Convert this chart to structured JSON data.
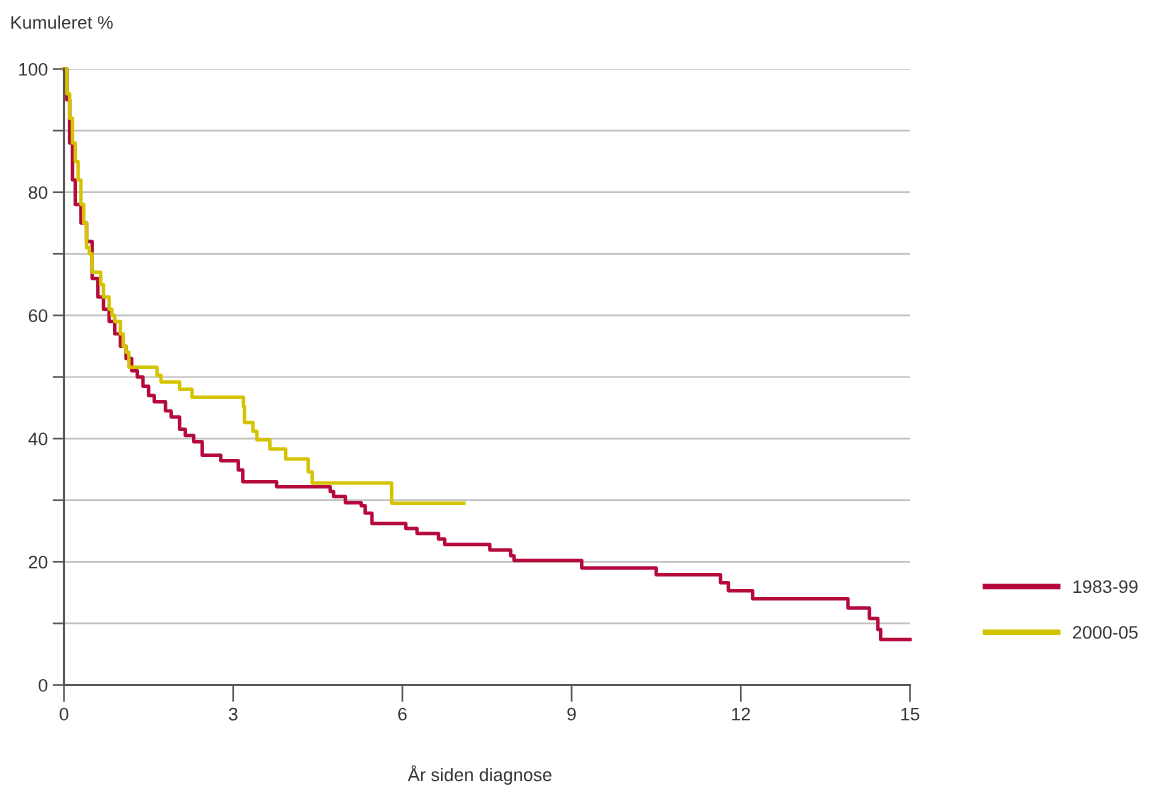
{
  "chart_data": {
    "type": "step",
    "ylabel": "Kumuleret %",
    "xlabel": "År siden diagnose",
    "xlim": [
      0,
      15
    ],
    "xticks": [
      0,
      3,
      6,
      9,
      12,
      15
    ],
    "ylim": [
      0,
      100
    ],
    "yticks": [
      0,
      {
        "value": 10,
        "label": null
      },
      20,
      {
        "value": 30,
        "label": null
      },
      40,
      {
        "value": 50,
        "label": null
      },
      60,
      {
        "value": 70,
        "label": null
      },
      80,
      {
        "value": 90,
        "label": null
      },
      100
    ],
    "grid": "y",
    "legend": "right",
    "line_style": "solid",
    "series": [
      {
        "name": "1983-99",
        "color": "#b5093c",
        "x": [
          0,
          0.05,
          0.1,
          0.15,
          0.2,
          0.3,
          0.4,
          0.5,
          0.6,
          0.7,
          0.8,
          0.9,
          1.0,
          1.1,
          1.2,
          1.3,
          1.4,
          1.5,
          1.6,
          1.8,
          1.9,
          2.05,
          2.15,
          2.3,
          2.45,
          2.78,
          3.09,
          3.17,
          3.77,
          4.72,
          4.78,
          4.99,
          5.27,
          5.34,
          5.46,
          6.06,
          6.26,
          6.64,
          6.75,
          7.55,
          7.92,
          7.98,
          9.18,
          10.5,
          11.64,
          11.78,
          12.21,
          13.9,
          14.28,
          14.43,
          14.48,
          15
        ],
        "values": [
          100,
          95,
          88,
          82,
          78,
          75,
          72,
          66,
          63,
          61,
          59,
          57,
          55,
          53,
          51,
          50,
          48.5,
          47,
          46,
          44.5,
          43.5,
          41.5,
          40.5,
          39.5,
          37.3,
          36.4,
          34.9,
          33.0,
          32.2,
          31.4,
          30.6,
          29.6,
          29.1,
          27.9,
          26.2,
          25.4,
          24.6,
          23.7,
          22.8,
          21.9,
          21.0,
          20.2,
          19.0,
          17.9,
          16.6,
          15.3,
          14.0,
          12.5,
          10.8,
          9.0,
          7.4,
          7.4
        ]
      },
      {
        "name": "2000-05",
        "color": "#d4c300",
        "x": [
          0,
          0.05,
          0.1,
          0.15,
          0.2,
          0.25,
          0.3,
          0.35,
          0.4,
          0.45,
          0.5,
          0.65,
          0.7,
          0.8,
          0.85,
          0.9,
          1.0,
          1.05,
          1.1,
          1.15,
          1.65,
          1.72,
          2.05,
          2.27,
          3.18,
          3.2,
          3.35,
          3.42,
          3.65,
          3.93,
          4.33,
          4.4,
          5.81,
          7.09
        ],
        "values": [
          100,
          96,
          92,
          88,
          85,
          82,
          78,
          75,
          71,
          70,
          67,
          65,
          63,
          61,
          60,
          59,
          57,
          55,
          54,
          51.6,
          50.3,
          49.2,
          48.0,
          46.7,
          45.2,
          42.6,
          41.2,
          39.8,
          38.3,
          36.7,
          34.6,
          32.8,
          29.5,
          29.5
        ]
      }
    ]
  }
}
